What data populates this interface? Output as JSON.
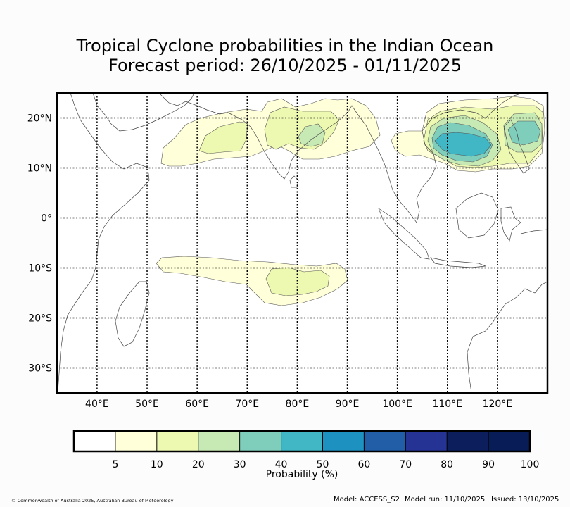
{
  "title": {
    "line1": "Tropical Cyclone probabilities in the Indian Ocean",
    "line2": "Forecast period: 26/10/2025 - 01/11/2025"
  },
  "map": {
    "lon_min": 32,
    "lon_max": 130,
    "lat_min": -35,
    "lat_max": 25,
    "lon_ticks": [
      {
        "value": 40,
        "label": "40°E"
      },
      {
        "value": 50,
        "label": "50°E"
      },
      {
        "value": 60,
        "label": "60°E"
      },
      {
        "value": 70,
        "label": "70°E"
      },
      {
        "value": 80,
        "label": "80°E"
      },
      {
        "value": 90,
        "label": "90°E"
      },
      {
        "value": 100,
        "label": "100°E"
      },
      {
        "value": 110,
        "label": "110°E"
      },
      {
        "value": 120,
        "label": "120°E"
      }
    ],
    "lat_ticks": [
      {
        "value": 20,
        "label": "20°N"
      },
      {
        "value": 10,
        "label": "10°N"
      },
      {
        "value": 0,
        "label": "0°"
      },
      {
        "value": -10,
        "label": "10°S"
      },
      {
        "value": -20,
        "label": "20°S"
      },
      {
        "value": -30,
        "label": "30°S"
      }
    ]
  },
  "colorbar": {
    "colors": [
      "#ffffff",
      "#ffffd9",
      "#edf8b1",
      "#c7e9b4",
      "#7fcdbb",
      "#41b6c4",
      "#1d91c0",
      "#225ea8",
      "#253494",
      "#0c1f5c",
      "#081d58"
    ],
    "tick_labels": [
      "5",
      "10",
      "20",
      "30",
      "40",
      "50",
      "60",
      "70",
      "80",
      "90",
      "100"
    ],
    "label": "Probability (%)"
  },
  "footer": {
    "copyright": "© Commonwealth of Australia 2025, Australian Bureau of Meteorology",
    "model": "Model: ACCESS_S2",
    "model_run": "Model run: 11/10/2025",
    "issued": "Issued: 13/10/2025"
  }
}
